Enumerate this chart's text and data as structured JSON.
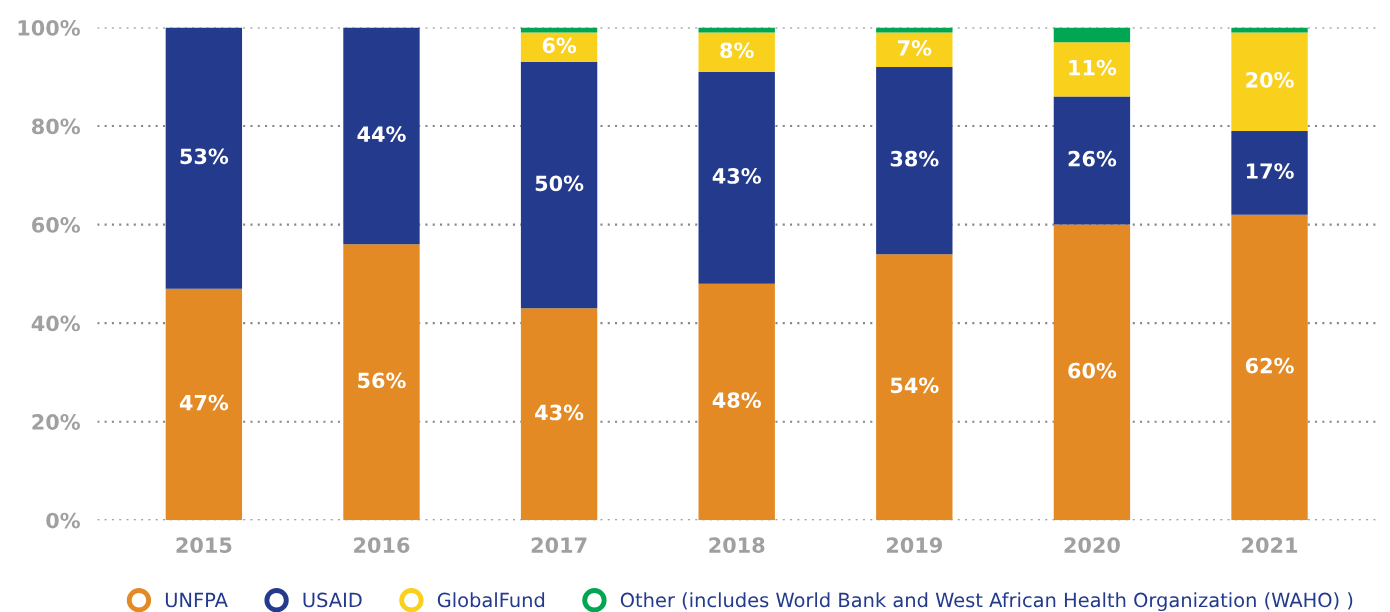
{
  "chart_data": {
    "type": "bar",
    "stacked": true,
    "categories": [
      "2015",
      "2016",
      "2017",
      "2018",
      "2019",
      "2020",
      "2021"
    ],
    "series": [
      {
        "name": "UNFPA",
        "color": "#e38a25",
        "values": [
          47,
          56,
          43,
          48,
          54,
          60,
          62
        ],
        "value_labels": [
          "47%",
          "56%",
          "43%",
          "48%",
          "54%",
          "60%",
          "62%"
        ]
      },
      {
        "name": "USAID",
        "color": "#243a8c",
        "values": [
          53,
          44,
          50,
          43,
          38,
          26,
          17
        ],
        "value_labels": [
          "53%",
          "44%",
          "50%",
          "43%",
          "38%",
          "26%",
          "17%"
        ]
      },
      {
        "name": "GlobalFund",
        "color": "#f9d11c",
        "values": [
          null,
          null,
          6,
          8,
          7,
          11,
          20
        ],
        "value_labels": [
          null,
          null,
          "6%",
          "8%",
          "7%",
          "11%",
          "20%"
        ]
      },
      {
        "name": "Other (includes World Bank and West African Health Organization (WAHO) )",
        "color": "#00a651",
        "values": [
          null,
          null,
          1,
          1,
          1,
          3,
          1
        ]
      }
    ],
    "ylim": [
      0,
      100
    ],
    "yticks": [
      {
        "value": 0,
        "label": "0%"
      },
      {
        "value": 20,
        "label": "20%"
      },
      {
        "value": 40,
        "label": "40%"
      },
      {
        "value": 60,
        "label": "60%"
      },
      {
        "value": 80,
        "label": "80%"
      },
      {
        "value": 100,
        "label": "100%"
      }
    ],
    "grid": "y",
    "legend": "bottom"
  }
}
